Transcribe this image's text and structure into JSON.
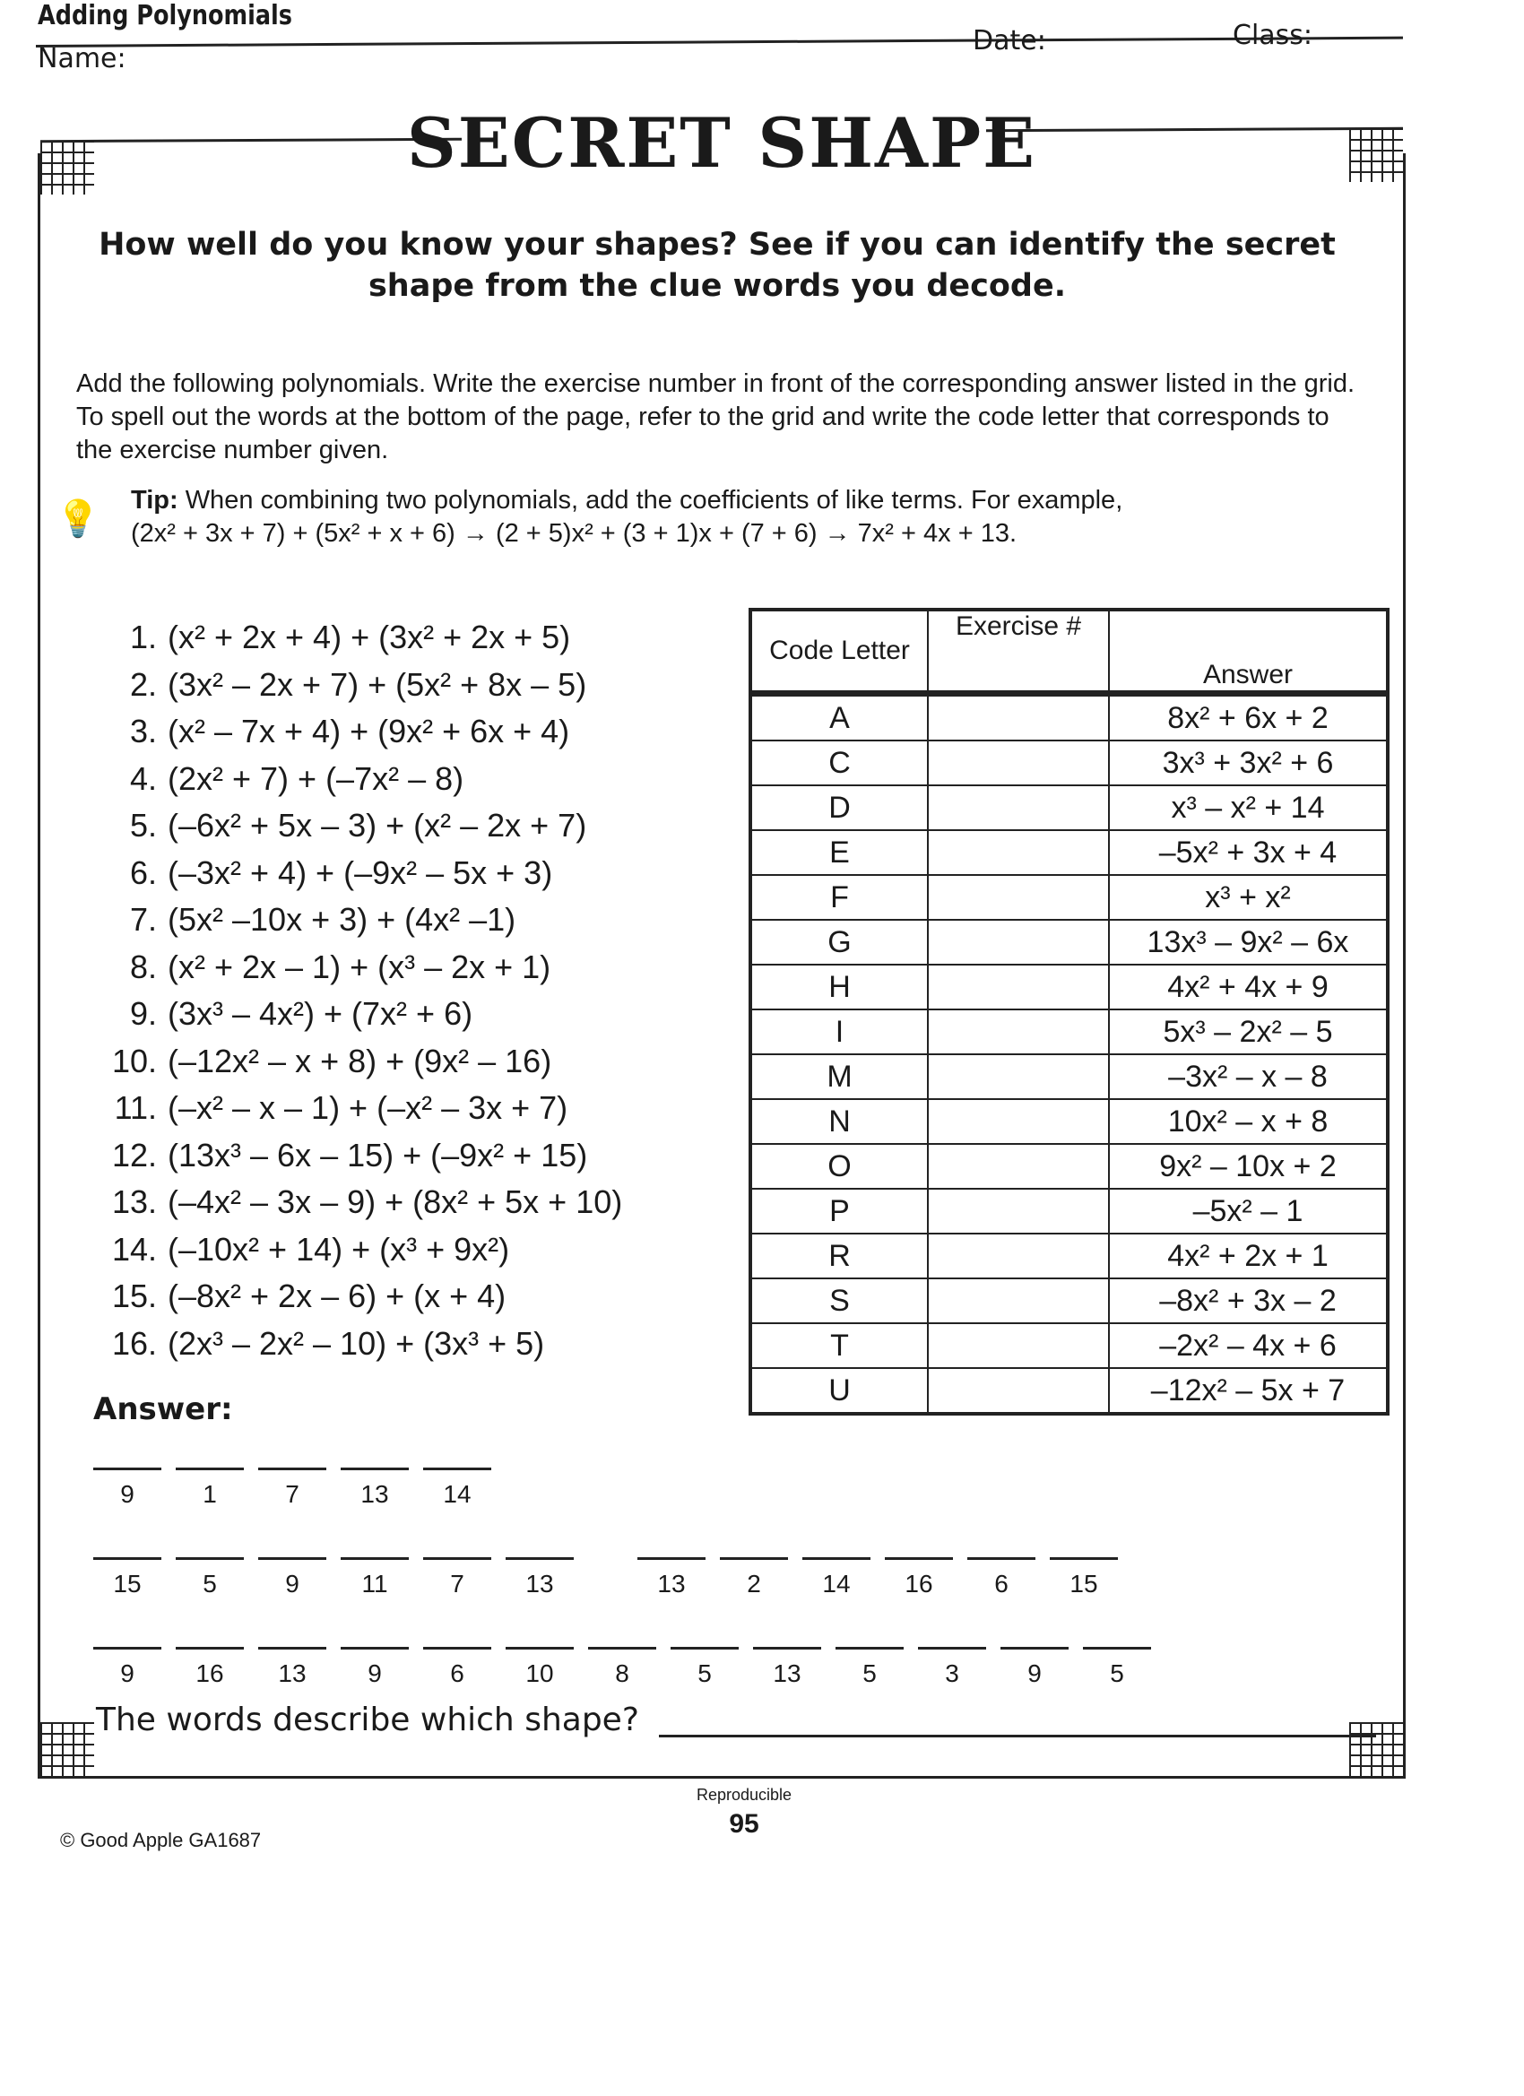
{
  "header": {
    "topic": "Adding Polynomials",
    "name_label": "Name:",
    "date_label": "Date:",
    "class_label": "Class:"
  },
  "title": "SECRET SHAPE",
  "subtitle": "How well do you know your shapes? See if you can identify the secret shape from the clue words you decode.",
  "instructions": "Add the following polynomials. Write the exercise number in front of the corresponding answer listed in the grid. To spell out the words at the bottom of the page, refer to the grid and write the code letter that corresponds to the exercise number given.",
  "tip": {
    "icon": "lightbulb-icon",
    "label": "Tip:",
    "text": "When combining two polynomials, add the coefficients of like terms. For example,",
    "example": "(2x² + 3x + 7) + (5x² + x + 6) → (2 + 5)x² + (3 + 1)x + (7 + 6) → 7x² + 4x + 13."
  },
  "exercises": [
    {
      "num": "1.",
      "expr": "(x² + 2x + 4) + (3x² + 2x + 5)"
    },
    {
      "num": "2.",
      "expr": "(3x² – 2x + 7) + (5x² + 8x – 5)"
    },
    {
      "num": "3.",
      "expr": "(x² – 7x + 4) + (9x² + 6x + 4)"
    },
    {
      "num": "4.",
      "expr": "(2x² + 7) + (–7x² – 8)"
    },
    {
      "num": "5.",
      "expr": "(–6x² + 5x – 3) + (x² – 2x + 7)"
    },
    {
      "num": "6.",
      "expr": "(–3x² + 4) + (–9x² – 5x + 3)"
    },
    {
      "num": "7.",
      "expr": "(5x² –10x + 3) + (4x² –1)"
    },
    {
      "num": "8.",
      "expr": "(x² + 2x – 1) + (x³ – 2x + 1)"
    },
    {
      "num": "9.",
      "expr": "(3x³ – 4x²) + (7x² + 6)"
    },
    {
      "num": "10.",
      "expr": "(–12x² – x + 8) + (9x² – 16)"
    },
    {
      "num": "11.",
      "expr": "(–x² – x – 1) + (–x² – 3x + 7)"
    },
    {
      "num": "12.",
      "expr": "(13x³ – 6x – 15) + (–9x² + 15)"
    },
    {
      "num": "13.",
      "expr": "(–4x² – 3x – 9) + (8x² + 5x + 10)"
    },
    {
      "num": "14.",
      "expr": "(–10x² + 14) + (x³ + 9x²)"
    },
    {
      "num": "15.",
      "expr": "(–8x² + 2x – 6) + (x + 4)"
    },
    {
      "num": "16.",
      "expr": "(2x³ – 2x² – 10) + (3x³ + 5)"
    }
  ],
  "table": {
    "headers": [
      "Code Letter",
      "Exercise #",
      "Answer"
    ],
    "rows": [
      {
        "letter": "A",
        "exercise": "",
        "answer": "8x² + 6x + 2"
      },
      {
        "letter": "C",
        "exercise": "",
        "answer": "3x³ + 3x² + 6"
      },
      {
        "letter": "D",
        "exercise": "",
        "answer": "x³ – x² + 14"
      },
      {
        "letter": "E",
        "exercise": "",
        "answer": "–5x² + 3x + 4"
      },
      {
        "letter": "F",
        "exercise": "",
        "answer": "x³ + x²"
      },
      {
        "letter": "G",
        "exercise": "",
        "answer": "13x³ – 9x² – 6x"
      },
      {
        "letter": "H",
        "exercise": "",
        "answer": "4x² + 4x + 9"
      },
      {
        "letter": "I",
        "exercise": "",
        "answer": "5x³ – 2x² – 5"
      },
      {
        "letter": "M",
        "exercise": "",
        "answer": "–3x² – x – 8"
      },
      {
        "letter": "N",
        "exercise": "",
        "answer": "10x² – x + 8"
      },
      {
        "letter": "O",
        "exercise": "",
        "answer": "9x² – 10x + 2"
      },
      {
        "letter": "P",
        "exercise": "",
        "answer": "–5x² – 1"
      },
      {
        "letter": "R",
        "exercise": "",
        "answer": "4x² + 2x + 1"
      },
      {
        "letter": "S",
        "exercise": "",
        "answer": "–8x² + 3x – 2"
      },
      {
        "letter": "T",
        "exercise": "",
        "answer": "–2x² – 4x + 6"
      },
      {
        "letter": "U",
        "exercise": "",
        "answer": "–12x² – 5x + 7"
      }
    ]
  },
  "answer": {
    "label": "Answer:",
    "lines": [
      [
        [
          "9",
          "1",
          "7",
          "13",
          "14"
        ]
      ],
      [
        [
          "15",
          "5",
          "9",
          "11",
          "7",
          "13"
        ],
        [
          "13",
          "2",
          "14",
          "16",
          "6",
          "15"
        ]
      ],
      [
        [
          "9",
          "16",
          "13",
          "9",
          "6",
          "10",
          "8",
          "5",
          "13",
          "5",
          "3",
          "9",
          "5"
        ]
      ]
    ],
    "question": "The words describe which shape?"
  },
  "footer": {
    "reproducible": "Reproducible",
    "page_number": "95",
    "copyright": "© Good Apple GA1687"
  }
}
